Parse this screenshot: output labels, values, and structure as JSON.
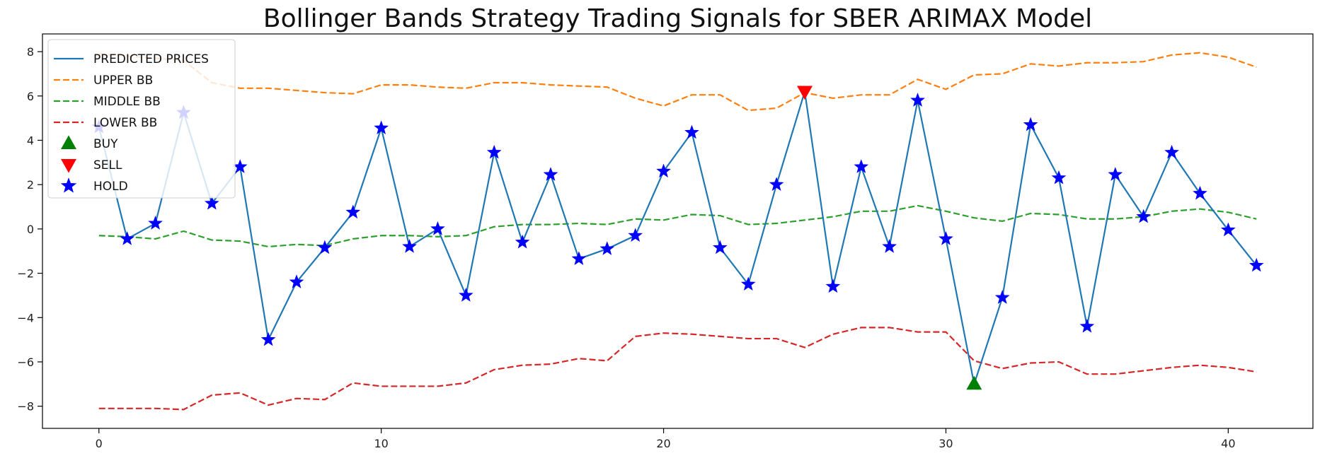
{
  "chart_data": {
    "type": "line",
    "title": "Bollinger Bands Strategy Trading Signals for SBER ARIMAX Model",
    "xlabel": "",
    "ylabel": "",
    "xlim": [
      -2,
      43
    ],
    "ylim": [
      -9,
      8.8
    ],
    "x_ticks": [
      0,
      10,
      20,
      30,
      40
    ],
    "y_ticks": [
      -8,
      -6,
      -4,
      -2,
      0,
      2,
      4,
      6,
      8
    ],
    "grid": false,
    "legend_position": "upper-left",
    "x": [
      0,
      1,
      2,
      3,
      4,
      5,
      6,
      7,
      8,
      9,
      10,
      11,
      12,
      13,
      14,
      15,
      16,
      17,
      18,
      19,
      20,
      21,
      22,
      23,
      24,
      25,
      26,
      27,
      28,
      29,
      30,
      31,
      32,
      33,
      34,
      35,
      36,
      37,
      38,
      39,
      40,
      41
    ],
    "series": [
      {
        "name": "PREDICTED PRICES",
        "style": "solid",
        "color": "#1f77b4",
        "values": [
          4.6,
          -0.45,
          0.25,
          5.25,
          1.15,
          2.8,
          -5.0,
          -2.4,
          -0.85,
          0.75,
          4.55,
          -0.8,
          0.0,
          -3.0,
          3.45,
          -0.6,
          2.45,
          -1.35,
          -0.9,
          -0.3,
          2.6,
          4.35,
          -0.85,
          -2.5,
          2.0,
          6.2,
          -2.6,
          2.8,
          -0.8,
          5.8,
          -0.45,
          -7.0,
          -3.1,
          4.7,
          2.3,
          -4.4,
          2.45,
          0.55,
          3.45,
          1.6,
          -0.05,
          -1.65
        ]
      },
      {
        "name": "UPPER BB",
        "style": "dashed",
        "color": "#ff7f0e",
        "values": [
          7.9,
          7.8,
          7.7,
          7.6,
          6.6,
          6.35,
          6.35,
          6.25,
          6.15,
          6.1,
          6.5,
          6.5,
          6.4,
          6.35,
          6.6,
          6.6,
          6.5,
          6.45,
          6.4,
          5.9,
          5.55,
          6.05,
          6.05,
          5.35,
          5.45,
          6.15,
          5.9,
          6.05,
          6.05,
          6.75,
          6.3,
          6.95,
          7.0,
          7.45,
          7.35,
          7.5,
          7.5,
          7.55,
          7.85,
          7.95,
          7.75,
          7.3
        ]
      },
      {
        "name": "MIDDLE BB",
        "style": "dashed",
        "color": "#2ca02c",
        "values": [
          -0.3,
          -0.35,
          -0.45,
          -0.1,
          -0.5,
          -0.55,
          -0.8,
          -0.7,
          -0.75,
          -0.45,
          -0.3,
          -0.3,
          -0.35,
          -0.3,
          0.1,
          0.2,
          0.2,
          0.25,
          0.2,
          0.45,
          0.4,
          0.65,
          0.6,
          0.2,
          0.25,
          0.4,
          0.55,
          0.8,
          0.8,
          1.05,
          0.8,
          0.5,
          0.35,
          0.7,
          0.65,
          0.45,
          0.45,
          0.55,
          0.8,
          0.9,
          0.75,
          0.45
        ]
      },
      {
        "name": "LOWER BB",
        "style": "dashed",
        "color": "#d62728",
        "values": [
          -8.1,
          -8.1,
          -8.1,
          -8.15,
          -7.5,
          -7.4,
          -7.95,
          -7.65,
          -7.7,
          -6.95,
          -7.1,
          -7.1,
          -7.1,
          -6.95,
          -6.35,
          -6.15,
          -6.1,
          -5.85,
          -5.95,
          -4.85,
          -4.7,
          -4.75,
          -4.85,
          -4.95,
          -4.95,
          -5.35,
          -4.75,
          -4.45,
          -4.45,
          -4.65,
          -4.65,
          -5.95,
          -6.3,
          -6.05,
          -6.0,
          -6.55,
          -6.55,
          -6.4,
          -6.25,
          -6.15,
          -6.25,
          -6.45
        ]
      }
    ],
    "signals": [
      {
        "name": "BUY",
        "marker": "triangle-up",
        "color": "#008000",
        "points": [
          {
            "x": 31,
            "y": -7.0
          }
        ]
      },
      {
        "name": "SELL",
        "marker": "triangle-down",
        "color": "#ff0000",
        "points": [
          {
            "x": 25,
            "y": 6.2
          }
        ]
      },
      {
        "name": "HOLD",
        "marker": "star",
        "color": "#0000ff",
        "points_from_series": "PREDICTED PRICES",
        "exclude_x": [
          25,
          31
        ]
      }
    ]
  }
}
